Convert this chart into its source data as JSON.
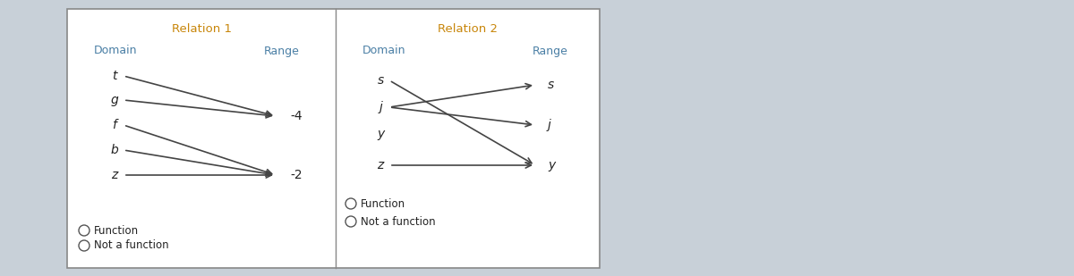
{
  "bg_color": "#c8d0d8",
  "panel_color": "#ffffff",
  "title_color": "#c8860a",
  "label_color": "#4a7fa5",
  "arrow_color": "#444444",
  "text_color": "#222222",
  "rel1_title": "Relation 1",
  "rel1_domain_label": "Domain",
  "rel1_range_label": "Range",
  "rel1_domain_items": [
    "t",
    "g",
    "f",
    "b",
    "z"
  ],
  "rel1_range_items": [
    "-4",
    "-2"
  ],
  "rel1_arrows": [
    [
      0,
      0
    ],
    [
      1,
      0
    ],
    [
      2,
      1
    ],
    [
      3,
      1
    ],
    [
      4,
      1
    ]
  ],
  "rel1_func_text": "Function",
  "rel1_notfunc_text": "Not a function",
  "rel2_title": "Relation 2",
  "rel2_domain_label": "Domain",
  "rel2_range_label": "Range",
  "rel2_domain_items": [
    "s",
    "j",
    "y",
    "z"
  ],
  "rel2_range_items": [
    "s",
    "j",
    "y"
  ],
  "rel2_arrows": [
    [
      0,
      2
    ],
    [
      1,
      0
    ],
    [
      1,
      1
    ],
    [
      3,
      2
    ]
  ],
  "rel2_func_text": "Function",
  "rel2_notfunc_text": "Not a function",
  "figwidth": 12.0,
  "figheight": 3.09,
  "dpi": 100
}
